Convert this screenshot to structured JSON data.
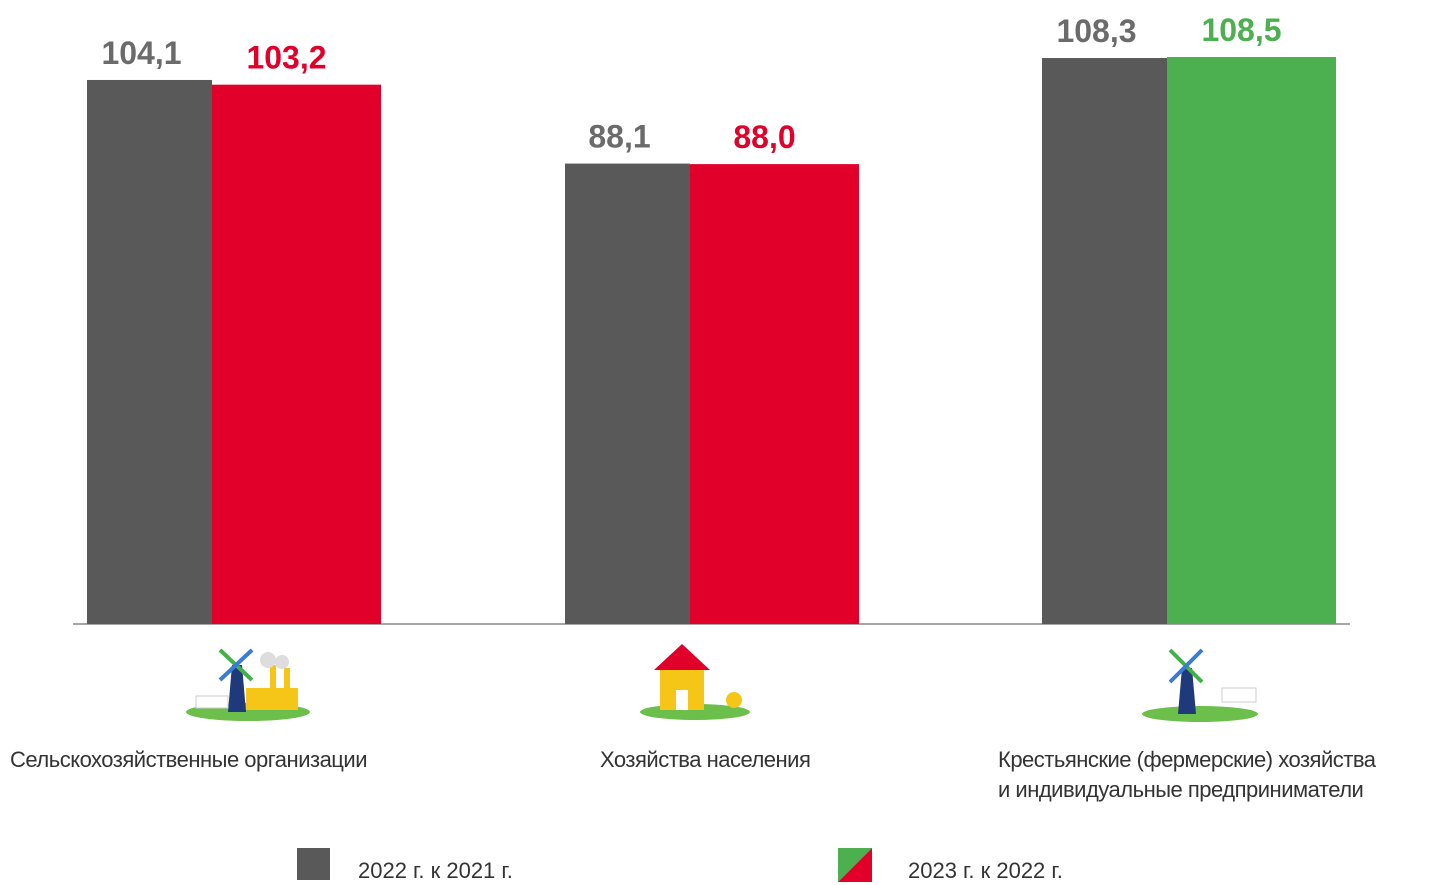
{
  "chart_data": {
    "type": "bar",
    "categories": [
      "Сельскохозяйственные организации",
      "Хозяйства населения",
      "Крестьянские (фермерские) хозяйства\nи индивидуальные предприниматели"
    ],
    "series": [
      {
        "name": "2022 г. к 2021 г.",
        "color": "#595959",
        "label_color": "#6b6b6b",
        "values": [
          104.1,
          88.1,
          108.3
        ],
        "value_labels": [
          "104,1",
          "88,1",
          "108,3"
        ]
      },
      {
        "name": "2023 г. к 2022 г.",
        "colors": [
          "#e0002a",
          "#e0002a",
          "#4caf50"
        ],
        "values": [
          103.2,
          88.0,
          108.5
        ],
        "value_labels": [
          "103,2",
          "88,0",
          "108,5"
        ]
      }
    ]
  }
}
